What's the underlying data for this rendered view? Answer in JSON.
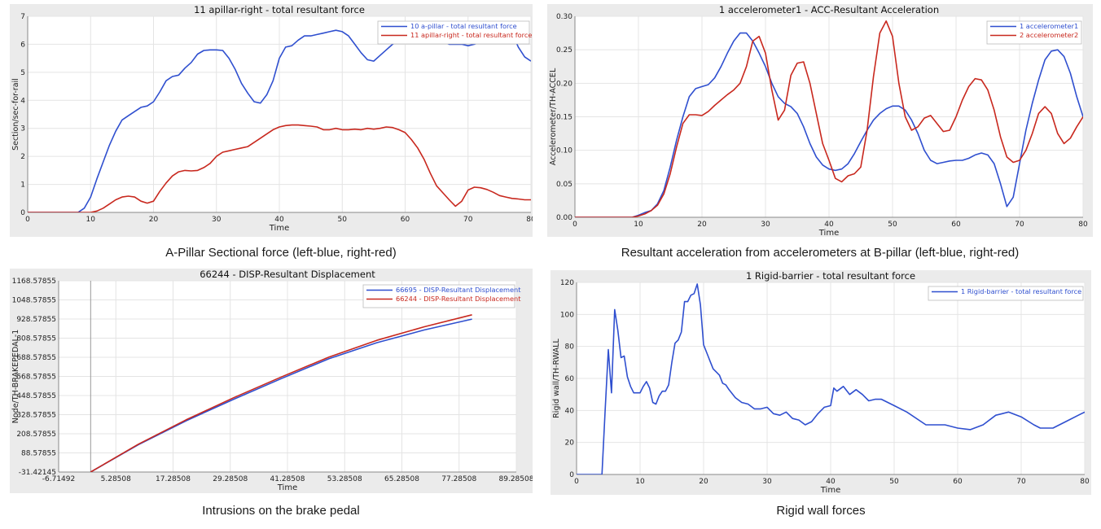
{
  "colors": {
    "blue": "#2f4fcf",
    "red": "#c8281e",
    "grid": "#e4e4e4",
    "frame_bg": "#ebebeb",
    "plot_bg": "#ffffff"
  },
  "chart_data": [
    {
      "type": "line",
      "title": "11 apillar-right - total resultant force",
      "xlabel": "Time",
      "ylabel": "Section/sec-for-rail",
      "xlim": [
        0,
        80
      ],
      "ylim": [
        0,
        7
      ],
      "xticks": [
        0,
        10,
        20,
        30,
        40,
        50,
        60,
        70,
        80
      ],
      "yticks": [
        0,
        1,
        2,
        3,
        4,
        5,
        6,
        7
      ],
      "grid": true,
      "legend": "top-right",
      "series": [
        {
          "name": "10 a-pillar - total resultant force",
          "color": "blue",
          "x": [
            0,
            8,
            9,
            10,
            11,
            12,
            13,
            14,
            15,
            16,
            17,
            18,
            19,
            20,
            21,
            22,
            23,
            24,
            25,
            26,
            27,
            28,
            29,
            30,
            31,
            32,
            33,
            34,
            35,
            36,
            37,
            38,
            39,
            40,
            41,
            42,
            43,
            44,
            45,
            46,
            47,
            48,
            49,
            50,
            51,
            52,
            53,
            54,
            55,
            56,
            57,
            58,
            59,
            60,
            61,
            62,
            63,
            64,
            65,
            66,
            67,
            68,
            69,
            70,
            71,
            72,
            73,
            74,
            75,
            76,
            77,
            78,
            79,
            80
          ],
          "y": [
            0,
            0,
            0.15,
            0.55,
            1.2,
            1.8,
            2.4,
            2.9,
            3.3,
            3.45,
            3.6,
            3.75,
            3.8,
            3.95,
            4.3,
            4.7,
            4.85,
            4.9,
            5.15,
            5.35,
            5.65,
            5.78,
            5.8,
            5.8,
            5.78,
            5.5,
            5.1,
            4.6,
            4.25,
            3.95,
            3.9,
            4.2,
            4.7,
            5.5,
            5.9,
            5.95,
            6.15,
            6.3,
            6.3,
            6.35,
            6.4,
            6.45,
            6.5,
            6.45,
            6.3,
            6.0,
            5.7,
            5.45,
            5.4,
            5.6,
            5.8,
            6.0,
            6.15,
            6.2,
            6.2,
            6.1,
            6.15,
            6.05,
            6.05,
            6.1,
            6.0,
            6.0,
            6.0,
            5.95,
            6.0,
            6.1,
            6.15,
            6.2,
            6.4,
            6.55,
            6.4,
            5.9,
            5.55,
            5.4
          ]
        },
        {
          "name": "11 apillar-right - total resultant force",
          "color": "red",
          "x": [
            0,
            10,
            11,
            12,
            13,
            14,
            15,
            16,
            17,
            18,
            19,
            20,
            21,
            22,
            23,
            24,
            25,
            26,
            27,
            28,
            29,
            30,
            31,
            32,
            33,
            34,
            35,
            36,
            37,
            38,
            39,
            40,
            41,
            42,
            43,
            44,
            45,
            46,
            47,
            48,
            49,
            50,
            51,
            52,
            53,
            54,
            55,
            56,
            57,
            58,
            59,
            60,
            61,
            62,
            63,
            64,
            65,
            66,
            67,
            68,
            69,
            70,
            71,
            72,
            73,
            74,
            75,
            76,
            77,
            78,
            79,
            80
          ],
          "y": [
            0,
            0,
            0.05,
            0.15,
            0.3,
            0.45,
            0.55,
            0.58,
            0.55,
            0.4,
            0.33,
            0.4,
            0.75,
            1.05,
            1.3,
            1.45,
            1.5,
            1.48,
            1.5,
            1.6,
            1.75,
            2.0,
            2.15,
            2.2,
            2.25,
            2.3,
            2.35,
            2.5,
            2.65,
            2.8,
            2.95,
            3.05,
            3.1,
            3.12,
            3.12,
            3.1,
            3.08,
            3.05,
            2.95,
            2.95,
            3.0,
            2.95,
            2.95,
            2.97,
            2.95,
            3.0,
            2.97,
            3.0,
            3.05,
            3.03,
            2.95,
            2.85,
            2.6,
            2.3,
            1.9,
            1.4,
            0.95,
            0.7,
            0.45,
            0.22,
            0.4,
            0.8,
            0.9,
            0.88,
            0.82,
            0.72,
            0.6,
            0.55,
            0.5,
            0.48,
            0.45,
            0.45
          ]
        }
      ]
    },
    {
      "type": "line",
      "title": "1 accelerometer1 - ACC-Resultant Acceleration",
      "xlabel": "Time",
      "ylabel": "Accelerometer/TH-ACCEL",
      "xlim": [
        0,
        80
      ],
      "ylim": [
        0,
        0.3
      ],
      "xticks": [
        0,
        10,
        20,
        30,
        40,
        50,
        60,
        70,
        80
      ],
      "yticks": [
        0.0,
        0.05,
        0.1,
        0.15,
        0.2,
        0.25,
        0.3
      ],
      "grid": true,
      "legend": "top-right",
      "series": [
        {
          "name": "1 accelerometer1",
          "color": "blue",
          "x": [
            0,
            9,
            10,
            11,
            12,
            13,
            14,
            15,
            16,
            17,
            18,
            19,
            20,
            21,
            22,
            23,
            24,
            25,
            26,
            27,
            28,
            29,
            30,
            31,
            32,
            33,
            34,
            35,
            36,
            37,
            38,
            39,
            40,
            41,
            42,
            43,
            44,
            45,
            46,
            47,
            48,
            49,
            50,
            51,
            52,
            53,
            54,
            55,
            56,
            57,
            58,
            59,
            60,
            61,
            62,
            63,
            64,
            65,
            66,
            67,
            68,
            69,
            70,
            71,
            72,
            73,
            74,
            75,
            76,
            77,
            78,
            79,
            80
          ],
          "y": [
            0,
            0,
            0.003,
            0.007,
            0.01,
            0.02,
            0.04,
            0.075,
            0.115,
            0.15,
            0.18,
            0.192,
            0.195,
            0.198,
            0.208,
            0.225,
            0.245,
            0.263,
            0.275,
            0.275,
            0.263,
            0.245,
            0.225,
            0.2,
            0.18,
            0.17,
            0.165,
            0.155,
            0.135,
            0.11,
            0.09,
            0.078,
            0.072,
            0.07,
            0.072,
            0.08,
            0.095,
            0.113,
            0.13,
            0.145,
            0.155,
            0.162,
            0.166,
            0.166,
            0.16,
            0.145,
            0.125,
            0.1,
            0.085,
            0.08,
            0.082,
            0.084,
            0.085,
            0.085,
            0.088,
            0.093,
            0.096,
            0.093,
            0.08,
            0.05,
            0.016,
            0.03,
            0.08,
            0.13,
            0.17,
            0.205,
            0.235,
            0.248,
            0.25,
            0.24,
            0.215,
            0.18,
            0.15
          ]
        },
        {
          "name": "2 accelerometer2",
          "color": "red",
          "x": [
            0,
            9,
            10,
            11,
            12,
            13,
            14,
            15,
            16,
            17,
            18,
            19,
            20,
            21,
            22,
            23,
            24,
            25,
            26,
            27,
            28,
            29,
            30,
            31,
            32,
            33,
            34,
            35,
            36,
            37,
            38,
            39,
            40,
            41,
            42,
            43,
            44,
            45,
            46,
            47,
            48,
            49,
            50,
            51,
            52,
            53,
            54,
            55,
            56,
            57,
            58,
            59,
            60,
            61,
            62,
            63,
            64,
            65,
            66,
            67,
            68,
            69,
            70,
            71,
            72,
            73,
            74,
            75,
            76,
            77,
            78,
            79,
            80
          ],
          "y": [
            0,
            0,
            0.002,
            0.005,
            0.01,
            0.018,
            0.035,
            0.065,
            0.105,
            0.14,
            0.153,
            0.153,
            0.152,
            0.158,
            0.167,
            0.175,
            0.183,
            0.19,
            0.2,
            0.225,
            0.263,
            0.27,
            0.245,
            0.19,
            0.145,
            0.16,
            0.212,
            0.23,
            0.232,
            0.2,
            0.155,
            0.11,
            0.085,
            0.058,
            0.053,
            0.062,
            0.065,
            0.075,
            0.13,
            0.21,
            0.275,
            0.293,
            0.27,
            0.2,
            0.15,
            0.13,
            0.135,
            0.148,
            0.152,
            0.14,
            0.128,
            0.13,
            0.15,
            0.175,
            0.195,
            0.207,
            0.205,
            0.19,
            0.16,
            0.12,
            0.09,
            0.082,
            0.085,
            0.1,
            0.125,
            0.155,
            0.165,
            0.155,
            0.125,
            0.11,
            0.118,
            0.135,
            0.15
          ]
        }
      ]
    },
    {
      "type": "line",
      "title": "66244 - DISP-Resultant Displacement",
      "xlabel": "Time",
      "ylabel": "Node/TH-BRAKEPEDAL-1",
      "xlim": [
        -6.71492,
        89.28508
      ],
      "ylim": [
        -31.42145,
        1168.57855
      ],
      "xticks": [
        -6.71492,
        5.28508,
        17.28508,
        29.28508,
        41.28508,
        53.28508,
        65.28508,
        77.28508,
        89.28508
      ],
      "xtick_labels": [
        "-6.71492",
        "5.28508",
        "17.28508",
        "29.28508",
        "41.28508",
        "53.28508",
        "65.28508",
        "77.28508",
        "89.28508"
      ],
      "yticks": [
        -31.42145,
        88.57855,
        208.57855,
        328.57855,
        448.57855,
        568.57855,
        688.57855,
        808.57855,
        928.57855,
        1048.57855,
        1168.57855
      ],
      "ytick_labels": [
        "-31.42145",
        "88.57855",
        "208.57855",
        "328.57855",
        "448.57855",
        "568.57855",
        "688.57855",
        "808.57855",
        "928.57855",
        "1048.57855",
        "1168.57855"
      ],
      "grid": true,
      "legend": "top-right",
      "series": [
        {
          "name": "66695 - DISP-Resultant Displacement",
          "color": "blue",
          "x": [
            0,
            10,
            20,
            30,
            40,
            50,
            60,
            70,
            80
          ],
          "y": [
            -31.4,
            140,
            290,
            425,
            555,
            680,
            780,
            860,
            928
          ]
        },
        {
          "name": "66244 - DISP-Resultant Displacement",
          "color": "red",
          "x": [
            0,
            10,
            20,
            30,
            40,
            50,
            60,
            70,
            80
          ],
          "y": [
            -31.4,
            143,
            296,
            435,
            565,
            690,
            795,
            880,
            955
          ]
        }
      ]
    },
    {
      "type": "line",
      "title": "1 Rigid-barrier - total resultant force",
      "xlabel": "Time",
      "ylabel": "Rigid wall/TH-RWALL",
      "xlim": [
        0,
        80
      ],
      "ylim": [
        0,
        120
      ],
      "xticks": [
        0,
        10,
        20,
        30,
        40,
        50,
        60,
        70,
        80
      ],
      "yticks": [
        0,
        20,
        40,
        60,
        80,
        100,
        120
      ],
      "grid": true,
      "legend": "top-right",
      "series": [
        {
          "name": "1 Rigid-barrier - total resultant force",
          "color": "blue",
          "x": [
            0,
            4,
            4.5,
            5,
            5.5,
            6,
            6.5,
            7,
            7.5,
            8,
            8.5,
            9,
            9.5,
            10,
            10.5,
            11,
            11.5,
            12,
            12.5,
            13,
            13.5,
            14,
            14.5,
            15,
            15.5,
            16,
            16.5,
            17,
            17.5,
            18,
            18.5,
            19,
            19.5,
            20,
            20.5,
            21,
            21.5,
            22,
            22.5,
            23,
            23.5,
            24,
            25,
            26,
            27,
            28,
            29,
            30,
            31,
            32,
            33,
            34,
            35,
            36,
            37,
            38,
            39,
            40,
            40.5,
            41,
            42,
            43,
            44,
            45,
            46,
            47,
            48,
            50,
            52,
            55,
            58,
            60,
            62,
            64,
            66,
            67,
            68,
            70,
            72,
            73,
            75,
            77,
            79,
            80
          ],
          "y": [
            0,
            0,
            40,
            78,
            51,
            103,
            90,
            73,
            74,
            61,
            55,
            51,
            51,
            51,
            55,
            58,
            54,
            45,
            44,
            49,
            52,
            52,
            56,
            70,
            82,
            84,
            89,
            108,
            108,
            112,
            113,
            119,
            106,
            81,
            76,
            71,
            66,
            64,
            62,
            57,
            56,
            53,
            48,
            45,
            44,
            41,
            41,
            42,
            38,
            37,
            39,
            35,
            34,
            31,
            33,
            38,
            42,
            43,
            54,
            52,
            55,
            50,
            53,
            50,
            46,
            47,
            47,
            43,
            39,
            31,
            31,
            29,
            28,
            31,
            37,
            38,
            39,
            36,
            31,
            29,
            29,
            33,
            37,
            39
          ]
        }
      ]
    }
  ],
  "captions": [
    "A-Pillar Sectional force (left-blue, right-red)",
    "Resultant acceleration from accelerometers at B-pillar (left-blue, right-red)",
    "Intrusions on the brake pedal",
    "Rigid wall forces"
  ]
}
